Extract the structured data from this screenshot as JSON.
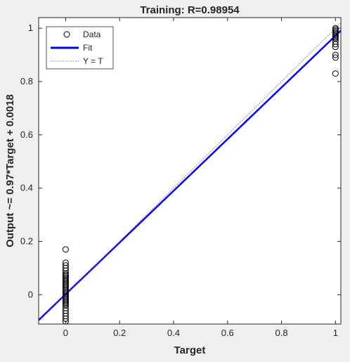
{
  "chart_data": {
    "type": "scatter",
    "title": "Training: R=0.98954",
    "xlabel": "Target",
    "ylabel": "Output ~= 0.97*Target + 0.0018",
    "xlim": [
      -0.1,
      1.02
    ],
    "ylim": [
      -0.11,
      1.04
    ],
    "xticks": [
      0,
      0.2,
      0.4,
      0.6,
      0.8,
      1
    ],
    "yticks": [
      0,
      0.2,
      0.4,
      0.6,
      0.8,
      1
    ],
    "xtick_labels": [
      "0",
      "0.2",
      "0.4",
      "0.6",
      "0.8",
      "1"
    ],
    "ytick_labels": [
      "0",
      "0.2",
      "0.4",
      "0.6",
      "0.8",
      "1"
    ],
    "legend_position": "top-left",
    "series": [
      {
        "name": "Data",
        "kind": "scatter",
        "marker": "circle-open",
        "color": "#000000",
        "points": [
          [
            0,
            0.17
          ],
          [
            0,
            0.12
          ],
          [
            0,
            0.11
          ],
          [
            0,
            0.1
          ],
          [
            0,
            0.09
          ],
          [
            0,
            0.08
          ],
          [
            0,
            0.075
          ],
          [
            0,
            0.07
          ],
          [
            0,
            0.065
          ],
          [
            0,
            0.06
          ],
          [
            0,
            0.055
          ],
          [
            0,
            0.05
          ],
          [
            0,
            0.045
          ],
          [
            0,
            0.04
          ],
          [
            0,
            0.035
          ],
          [
            0,
            0.03
          ],
          [
            0,
            0.025
          ],
          [
            0,
            0.02
          ],
          [
            0,
            0.015
          ],
          [
            0,
            0.01
          ],
          [
            0,
            0.005
          ],
          [
            0,
            0.0
          ],
          [
            0,
            -0.005
          ],
          [
            0,
            -0.01
          ],
          [
            0,
            -0.015
          ],
          [
            0,
            -0.02
          ],
          [
            0,
            -0.025
          ],
          [
            0,
            -0.03
          ],
          [
            0,
            -0.035
          ],
          [
            0,
            -0.04
          ],
          [
            0,
            -0.05
          ],
          [
            0,
            -0.06
          ],
          [
            0,
            -0.07
          ],
          [
            0,
            -0.08
          ],
          [
            0,
            -0.09
          ],
          [
            0,
            -0.1
          ],
          [
            1,
            1.0
          ],
          [
            1,
            0.995
          ],
          [
            1,
            0.99
          ],
          [
            1,
            0.985
          ],
          [
            1,
            0.98
          ],
          [
            1,
            0.975
          ],
          [
            1,
            0.97
          ],
          [
            1,
            0.965
          ],
          [
            1,
            0.96
          ],
          [
            1,
            0.95
          ],
          [
            1,
            0.94
          ],
          [
            1,
            0.93
          ],
          [
            1,
            0.9
          ],
          [
            1,
            0.89
          ],
          [
            1,
            0.83
          ]
        ]
      },
      {
        "name": "Fit",
        "kind": "line",
        "color": "#0000ff",
        "slope": 0.97,
        "intercept": 0.0018
      },
      {
        "name": "Y = T",
        "kind": "line",
        "style": "dotted",
        "color": "#a06060",
        "slope": 1,
        "intercept": 0
      }
    ]
  }
}
